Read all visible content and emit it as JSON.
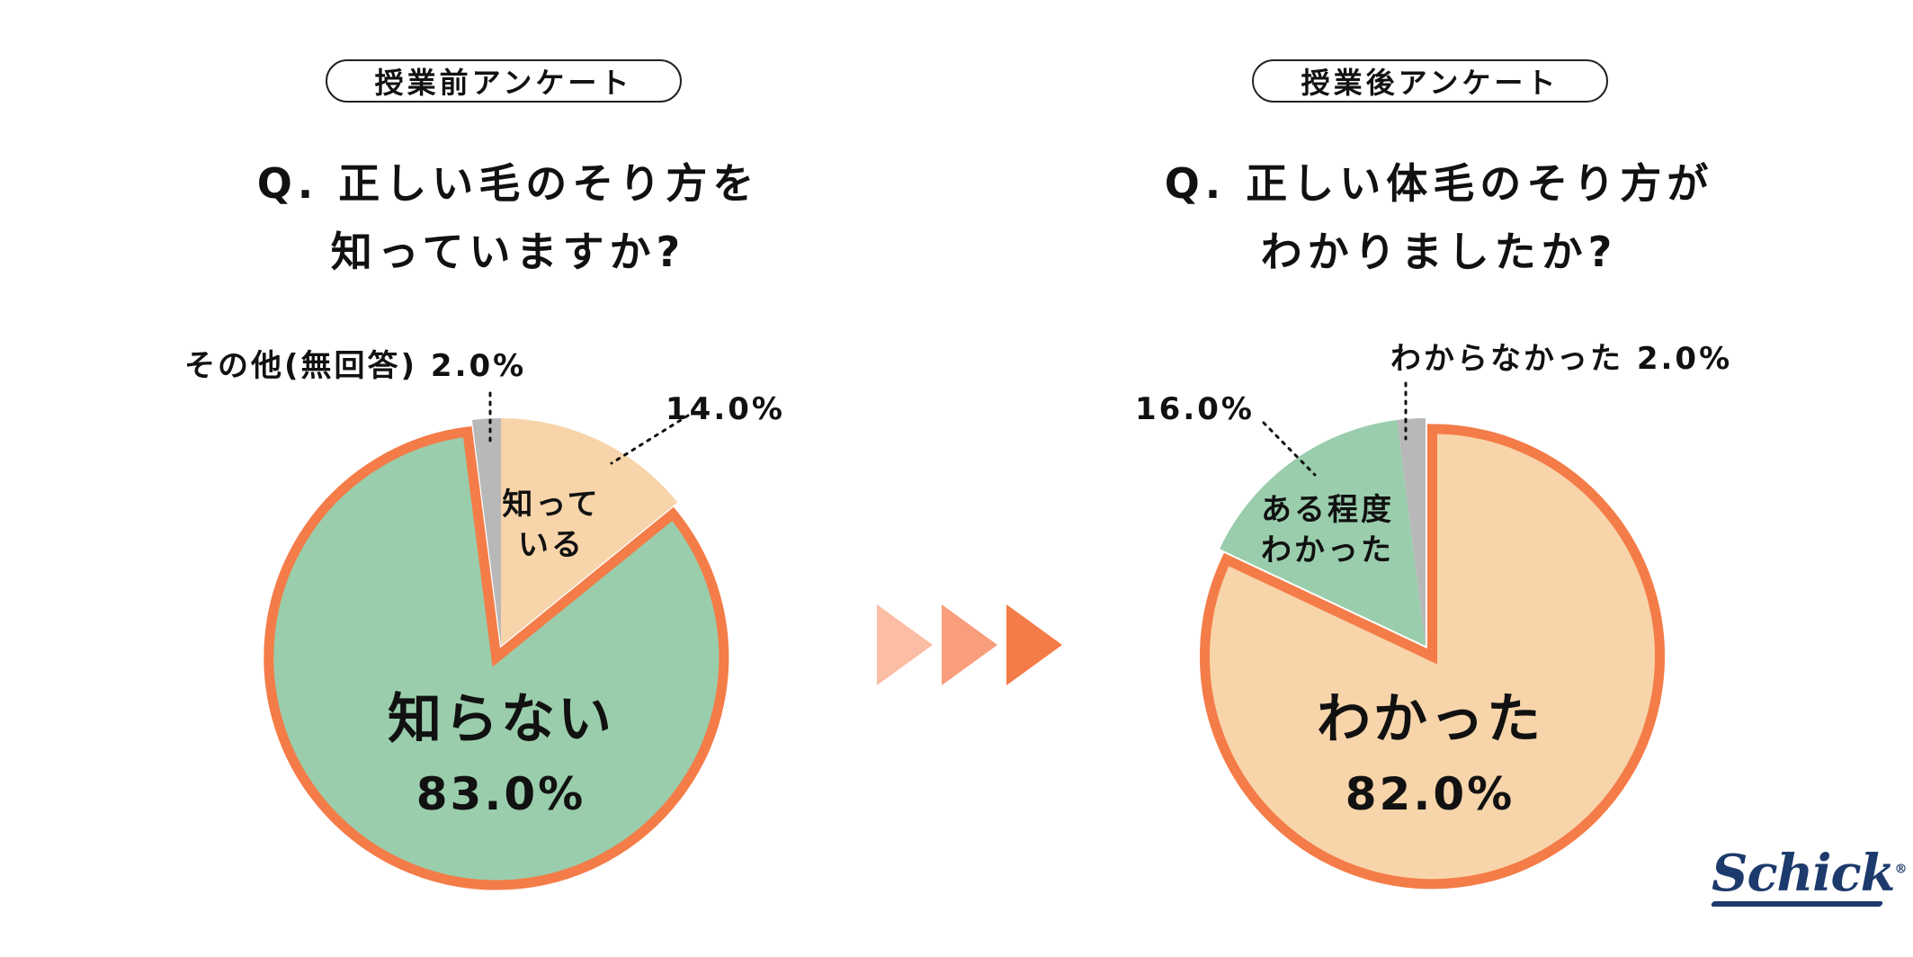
{
  "chart_data": [
    {
      "type": "pie",
      "badge": "授業前アンケート",
      "title_lines": [
        "Q. 正しい毛のそり方を",
        "知っていますか?"
      ],
      "slices": [
        {
          "label": "知っている",
          "label_lines": [
            "知って",
            "いる"
          ],
          "value": 14.0,
          "value_text": "14.0%",
          "color": "#f8d4aa",
          "exploded": false
        },
        {
          "label": "知らない",
          "label_lines": [
            "知らない"
          ],
          "value": 83.0,
          "value_text": "83.0%",
          "color": "#9acdac",
          "exploded": true
        },
        {
          "label": "その他(無回答)",
          "label_lines": [
            "その他(無回答)"
          ],
          "value": 2.0,
          "value_text": "2.0%",
          "color": "#b8b8b8",
          "exploded": false
        }
      ]
    },
    {
      "type": "pie",
      "badge": "授業後アンケート",
      "title_lines": [
        "Q. 正しい体毛のそり方が",
        "わかりましたか?"
      ],
      "slices": [
        {
          "label": "わかった",
          "label_lines": [
            "わかった"
          ],
          "value": 82.0,
          "value_text": "82.0%",
          "color": "#f8d4aa",
          "exploded": true
        },
        {
          "label": "ある程度わかった",
          "label_lines": [
            "ある程度",
            "わかった"
          ],
          "value": 16.0,
          "value_text": "16.0%",
          "color": "#9acdac",
          "exploded": false
        },
        {
          "label": "わからなかった",
          "label_lines": [
            "わからなかった"
          ],
          "value": 2.0,
          "value_text": "2.0%",
          "color": "#b8b8b8",
          "exploded": false
        }
      ]
    }
  ],
  "colors": {
    "outline": "#f47c48",
    "arrow_light": "#fbbda3",
    "arrow_mid": "#f99e7c",
    "arrow_dark": "#f47c48"
  },
  "brand": {
    "logo_text": "Schick",
    "registered_mark": "®"
  }
}
